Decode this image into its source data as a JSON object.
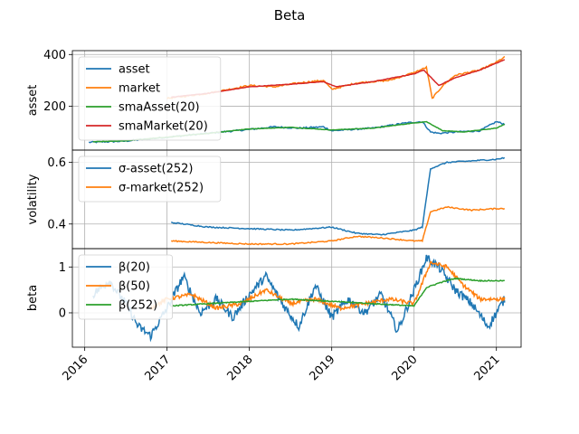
{
  "title": "Beta",
  "colors": {
    "c0": "#1f77b4",
    "c1": "#ff7f0e",
    "c2": "#2ca02c",
    "c3": "#d62728",
    "grid": "#b0b0b0"
  },
  "x_axis": {
    "ticks": [
      2016,
      2017,
      2018,
      2019,
      2020,
      2021
    ],
    "tick_labels": [
      "2016",
      "2017",
      "2018",
      "2019",
      "2020",
      "2021"
    ],
    "xlim": [
      2015.85,
      2021.3
    ]
  },
  "chart_data": [
    {
      "type": "line",
      "ylabel": "asset",
      "ylim": [
        30,
        415
      ],
      "yticks": [
        200,
        400
      ],
      "ytick_labels": [
        "200",
        "400"
      ],
      "legend": "upper-left",
      "grid": true,
      "series": [
        {
          "name": "asset",
          "color_key": "c0",
          "x": [
            2016.05,
            2016.5,
            2017.0,
            2017.5,
            2018.0,
            2018.3,
            2018.6,
            2018.9,
            2019.0,
            2019.5,
            2019.9,
            2020.1,
            2020.2,
            2020.3,
            2020.5,
            2020.8,
            2021.0,
            2021.1
          ],
          "y": [
            60,
            65,
            80,
            95,
            110,
            120,
            115,
            120,
            105,
            115,
            135,
            140,
            100,
            95,
            100,
            105,
            140,
            130
          ]
        },
        {
          "name": "market",
          "color_key": "c1",
          "x": [
            2017.0,
            2017.5,
            2018.0,
            2018.3,
            2018.6,
            2018.9,
            2019.0,
            2019.3,
            2019.7,
            2020.0,
            2020.15,
            2020.22,
            2020.35,
            2020.5,
            2020.8,
            2021.0,
            2021.1
          ],
          "y": [
            230,
            250,
            280,
            275,
            290,
            300,
            265,
            290,
            300,
            330,
            350,
            230,
            280,
            320,
            340,
            370,
            390
          ]
        },
        {
          "name": "smaAsset(20)",
          "color_key": "c2",
          "x": [
            2016.1,
            2016.5,
            2017.0,
            2017.5,
            2018.0,
            2018.5,
            2019.0,
            2019.5,
            2020.0,
            2020.15,
            2020.35,
            2020.6,
            2021.0,
            2021.1
          ],
          "y": [
            62,
            66,
            80,
            95,
            112,
            118,
            108,
            115,
            135,
            140,
            105,
            100,
            115,
            130
          ]
        },
        {
          "name": "smaMarket(20)",
          "color_key": "c3",
          "x": [
            2017.05,
            2017.5,
            2018.0,
            2018.5,
            2018.9,
            2019.05,
            2019.5,
            2020.0,
            2020.12,
            2020.3,
            2020.5,
            2020.8,
            2021.1
          ],
          "y": [
            235,
            250,
            275,
            285,
            295,
            275,
            295,
            325,
            340,
            280,
            310,
            340,
            380
          ]
        }
      ]
    },
    {
      "type": "line",
      "ylabel": "volatility",
      "ylim": [
        0.32,
        0.64
      ],
      "yticks": [
        0.4,
        0.6
      ],
      "ytick_labels": [
        "0.4",
        "0.6"
      ],
      "legend": "upper-left",
      "grid": true,
      "series": [
        {
          "name": "σ-asset(252)",
          "color_key": "c0",
          "x": [
            2017.05,
            2017.5,
            2018.0,
            2018.5,
            2019.0,
            2019.3,
            2019.6,
            2020.0,
            2020.1,
            2020.2,
            2020.4,
            2020.7,
            2021.0,
            2021.1
          ],
          "y": [
            0.405,
            0.39,
            0.385,
            0.38,
            0.39,
            0.37,
            0.365,
            0.38,
            0.39,
            0.58,
            0.6,
            0.605,
            0.61,
            0.615
          ]
        },
        {
          "name": "σ-market(252)",
          "color_key": "c1",
          "x": [
            2017.05,
            2017.5,
            2018.0,
            2018.5,
            2019.0,
            2019.3,
            2019.6,
            2020.0,
            2020.1,
            2020.2,
            2020.4,
            2020.7,
            2021.0,
            2021.1
          ],
          "y": [
            0.345,
            0.34,
            0.335,
            0.335,
            0.345,
            0.36,
            0.355,
            0.345,
            0.345,
            0.44,
            0.455,
            0.445,
            0.45,
            0.45
          ]
        }
      ]
    },
    {
      "type": "line",
      "ylabel": "beta",
      "ylim": [
        -0.75,
        1.4
      ],
      "yticks": [
        0,
        1
      ],
      "ytick_labels": [
        "0",
        "1"
      ],
      "legend": "upper-left",
      "grid": true,
      "series": [
        {
          "name": "β(20)",
          "color_key": "c0",
          "x": [
            2016.1,
            2016.3,
            2016.5,
            2016.65,
            2016.8,
            2017.0,
            2017.2,
            2017.4,
            2017.6,
            2017.8,
            2018.0,
            2018.2,
            2018.4,
            2018.6,
            2018.8,
            2019.0,
            2019.2,
            2019.4,
            2019.6,
            2019.8,
            2020.0,
            2020.15,
            2020.3,
            2020.5,
            2020.7,
            2020.9,
            2021.1
          ],
          "y": [
            0.4,
            0.7,
            0.2,
            -0.3,
            -0.5,
            0.1,
            0.8,
            0.0,
            0.3,
            -0.1,
            0.4,
            0.8,
            0.2,
            -0.3,
            0.6,
            -0.1,
            0.3,
            0.0,
            0.4,
            -0.4,
            0.5,
            1.2,
            1.0,
            0.5,
            0.2,
            -0.3,
            0.3
          ]
        },
        {
          "name": "β(50)",
          "color_key": "c1",
          "x": [
            2016.8,
            2017.0,
            2017.3,
            2017.6,
            2017.9,
            2018.2,
            2018.5,
            2018.8,
            2019.1,
            2019.4,
            2019.7,
            2020.0,
            2020.2,
            2020.4,
            2020.6,
            2020.8,
            2021.1
          ],
          "y": [
            0.1,
            0.3,
            0.4,
            0.1,
            0.2,
            0.5,
            0.2,
            0.3,
            0.1,
            0.2,
            0.3,
            0.2,
            1.1,
            1.0,
            0.6,
            0.3,
            0.3
          ]
        },
        {
          "name": "β(252)",
          "color_key": "c2",
          "x": [
            2017.05,
            2017.5,
            2018.0,
            2018.5,
            2019.0,
            2019.5,
            2020.0,
            2020.15,
            2020.3,
            2020.5,
            2020.8,
            2021.1
          ],
          "y": [
            0.15,
            0.2,
            0.25,
            0.3,
            0.25,
            0.2,
            0.15,
            0.55,
            0.65,
            0.75,
            0.7,
            0.7
          ]
        }
      ]
    }
  ]
}
